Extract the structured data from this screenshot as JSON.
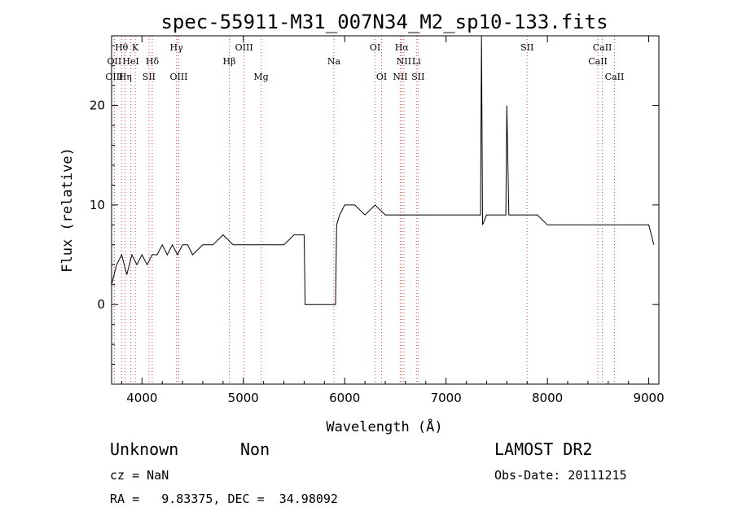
{
  "chart_data": {
    "type": "line",
    "title": "spec-55911-M31_007N34_M2_sp10-133.fits",
    "xlabel": "Wavelength (Å)",
    "ylabel": "Flux (relative)",
    "xlim": [
      3700,
      9100
    ],
    "ylim": [
      -8,
      27
    ],
    "xticks": [
      4000,
      5000,
      6000,
      7000,
      8000,
      9000
    ],
    "yticks": [
      0,
      10,
      20
    ],
    "grid": false,
    "spectral_lines": [
      {
        "label": "Hθ",
        "x": 3798,
        "row": 1
      },
      {
        "label": "OII",
        "x": 3727,
        "row": 2
      },
      {
        "label": "OIII",
        "x": 3727,
        "row": 3
      },
      {
        "label": "K",
        "x": 3934,
        "row": 1
      },
      {
        "label": "HeI",
        "x": 3889,
        "row": 2
      },
      {
        "label": "Hη",
        "x": 3835,
        "row": 3
      },
      {
        "label": "Hδ",
        "x": 4102,
        "row": 2
      },
      {
        "label": "SII",
        "x": 4069,
        "row": 3
      },
      {
        "label": "Hγ",
        "x": 4340,
        "row": 1
      },
      {
        "label": "OIII",
        "x": 4363,
        "row": 3
      },
      {
        "label": "OIII",
        "x": 5007,
        "row": 1
      },
      {
        "label": "Hβ",
        "x": 4861,
        "row": 2
      },
      {
        "label": "Mg",
        "x": 5175,
        "row": 3
      },
      {
        "label": "Na",
        "x": 5893,
        "row": 2
      },
      {
        "label": "OI",
        "x": 6300,
        "row": 1
      },
      {
        "label": "OI",
        "x": 6364,
        "row": 3
      },
      {
        "label": "Hα",
        "x": 6563,
        "row": 1
      },
      {
        "label": "NII",
        "x": 6584,
        "row": 2
      },
      {
        "label": "Li",
        "x": 6708,
        "row": 2
      },
      {
        "label": "NII",
        "x": 6548,
        "row": 3
      },
      {
        "label": "SII",
        "x": 6724,
        "row": 3
      },
      {
        "label": "SII",
        "x": 7800,
        "row": 1
      },
      {
        "label": "CaII",
        "x": 8542,
        "row": 1
      },
      {
        "label": "CaII",
        "x": 8498,
        "row": 2
      },
      {
        "label": "CaII",
        "x": 8662,
        "row": 3
      }
    ],
    "series": [
      {
        "x": [
          3700,
          3750,
          3800,
          3850,
          3900,
          3950,
          4000,
          4050,
          4100,
          4150,
          4200,
          4250,
          4300,
          4350,
          4400,
          4450,
          4500,
          4600,
          4700,
          4800,
          4900,
          5000,
          5100,
          5200,
          5300,
          5400,
          5500,
          5550,
          5600,
          5610,
          5800,
          5910,
          5920,
          5950,
          6000,
          6100,
          6200,
          6300,
          6400,
          6500,
          6600,
          6700,
          6800,
          6900,
          7000,
          7100,
          7200,
          7250,
          7300,
          7340,
          7350,
          7360,
          7400,
          7500,
          7580,
          7590,
          7600,
          7620,
          7700,
          7800,
          7900,
          8000,
          8100,
          8200,
          8300,
          8400,
          8500,
          8600,
          8700,
          8800,
          8900,
          9000,
          9050
        ],
        "y": [
          2,
          4,
          5,
          3,
          5,
          4,
          5,
          4,
          5,
          5,
          6,
          5,
          6,
          5,
          6,
          6,
          5,
          6,
          6,
          7,
          6,
          6,
          6,
          6,
          6,
          6,
          7,
          7,
          7,
          0,
          0,
          0,
          8,
          9,
          10,
          10,
          9,
          10,
          9,
          9,
          9,
          9,
          9,
          9,
          9,
          9,
          9,
          9,
          9,
          9,
          27,
          8,
          9,
          9,
          9,
          9,
          20,
          9,
          9,
          9,
          9,
          8,
          8,
          8,
          8,
          8,
          8,
          8,
          8,
          8,
          8,
          8,
          6
        ]
      }
    ]
  },
  "info": {
    "class": "Unknown",
    "subclass": "Non",
    "survey": "LAMOST DR2",
    "cz": "cz = NaN",
    "obs_date": "Obs-Date: 20111215",
    "coords": "RA =   9.83375, DEC =  34.98092"
  }
}
